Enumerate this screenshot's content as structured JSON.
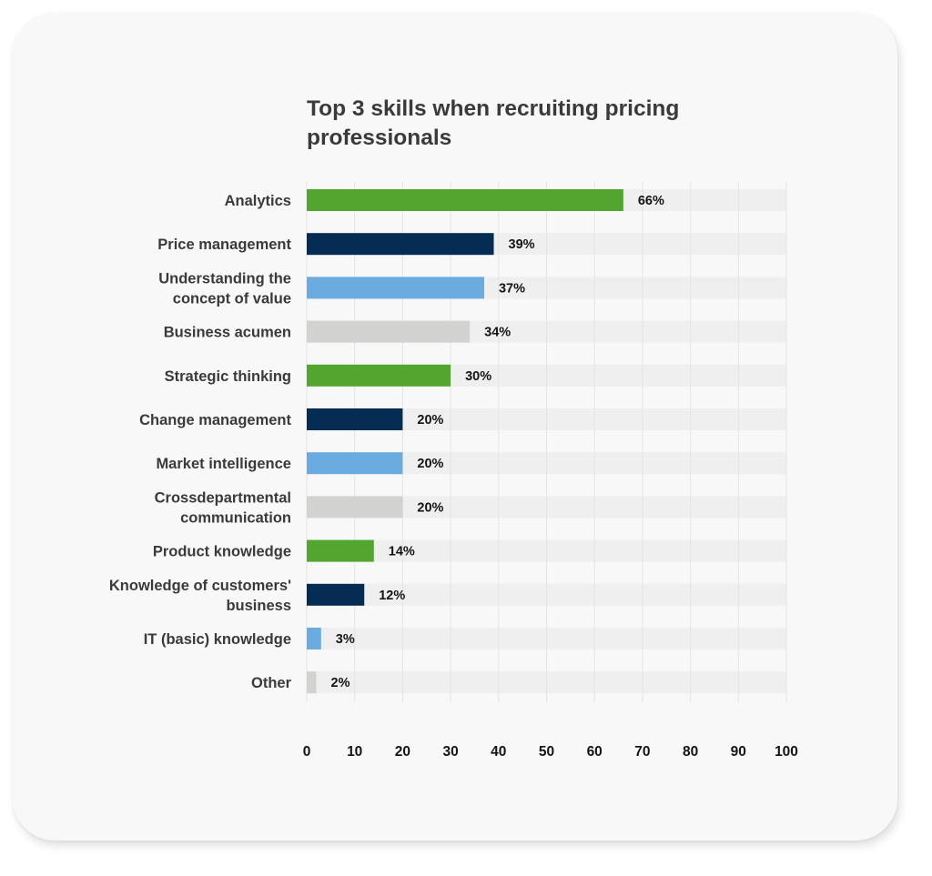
{
  "chart_data": {
    "type": "bar",
    "orientation": "horizontal",
    "title": "Top 3 skills when recruiting pricing\nprofessionals",
    "categories": [
      "Analytics",
      "Price management",
      "Understanding the\nconcept of value",
      "Business acumen",
      "Strategic thinking",
      "Change management",
      "Market intelligence",
      "Crossdepartmental\ncommunication",
      "Product knowledge",
      "Knowledge of customers'\nbusiness",
      "IT (basic) knowledge",
      "Other"
    ],
    "values": [
      66,
      39,
      37,
      34,
      30,
      20,
      20,
      20,
      14,
      12,
      3,
      2
    ],
    "value_labels": [
      "66%",
      "39%",
      "37%",
      "34%",
      "30%",
      "20%",
      "20%",
      "20%",
      "14%",
      "12%",
      "3%",
      "2%"
    ],
    "bar_colors": [
      "#52a52e",
      "#052d53",
      "#6aabe0",
      "#d2d3d1",
      "#52a52e",
      "#052d53",
      "#6aabe0",
      "#d2d3d1",
      "#52a52e",
      "#052d53",
      "#6aabe0",
      "#d2d3d1"
    ],
    "track_color": "#efefef",
    "xlim": [
      0,
      100
    ],
    "xticks": [
      "0",
      "10",
      "20",
      "30",
      "40",
      "50",
      "60",
      "70",
      "80",
      "90",
      "100"
    ],
    "xlabel": "",
    "ylabel": "",
    "grid": true,
    "legend": "none"
  }
}
